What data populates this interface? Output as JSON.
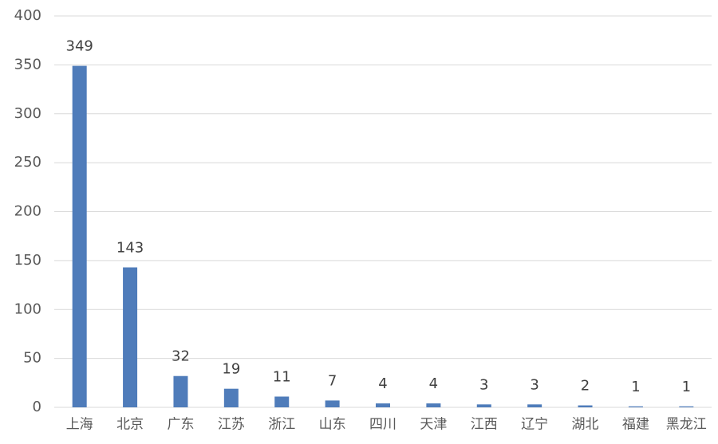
{
  "chart_data": {
    "type": "bar",
    "categories": [
      "上海",
      "北京",
      "广东",
      "江苏",
      "浙江",
      "山东",
      "四川",
      "天津",
      "江西",
      "辽宁",
      "湖北",
      "福建",
      "黑龙江"
    ],
    "values": [
      349,
      143,
      32,
      19,
      11,
      7,
      4,
      4,
      3,
      3,
      2,
      1,
      1
    ],
    "color": "#4f7cba",
    "ylim": [
      0,
      400
    ],
    "yticks": [
      0,
      50,
      100,
      150,
      200,
      250,
      300,
      350,
      400
    ],
    "grid": true
  }
}
